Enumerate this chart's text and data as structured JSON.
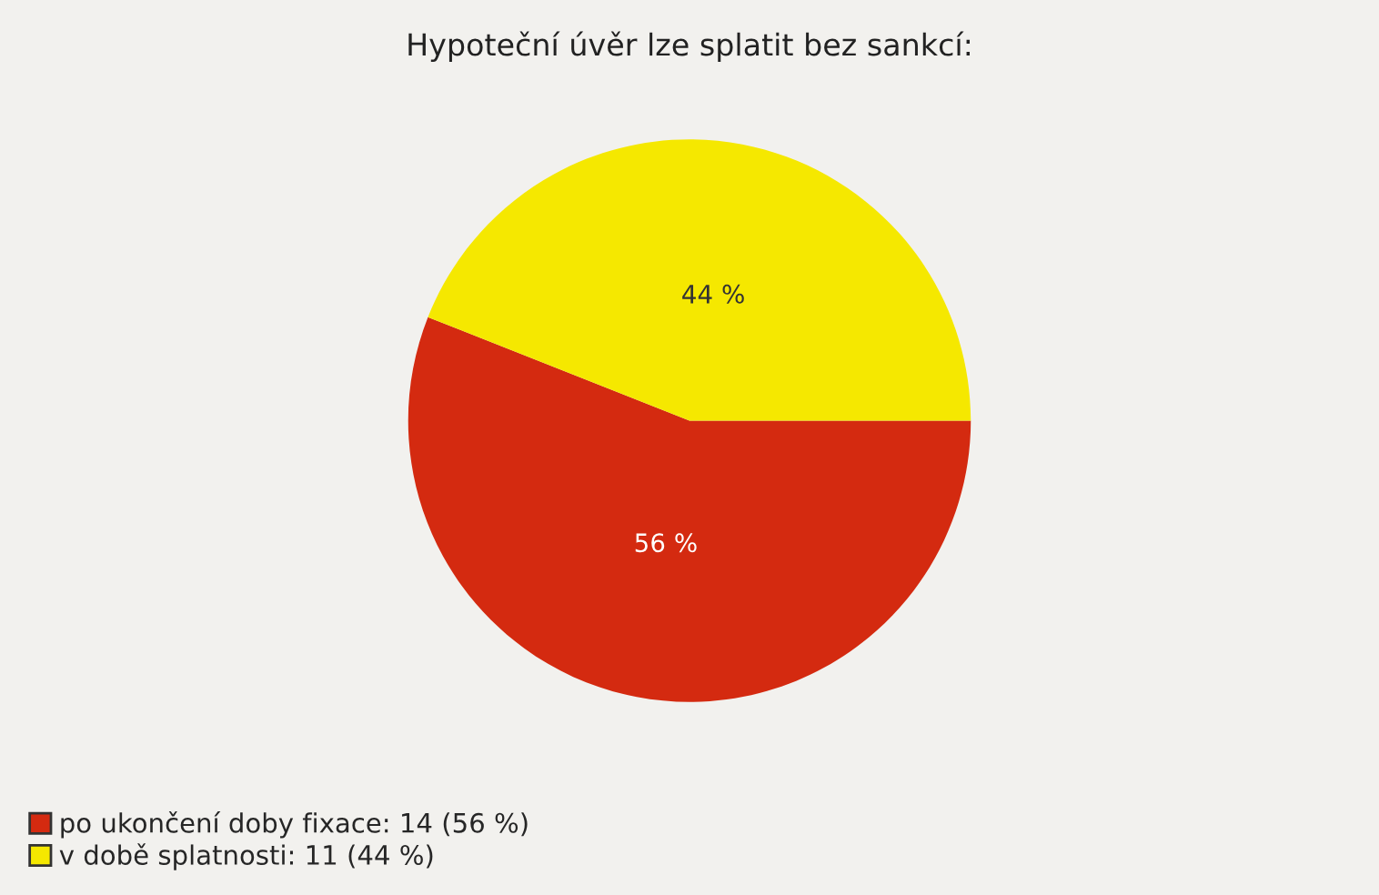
{
  "chart_data": {
    "type": "pie",
    "title": "Hypoteční úvěr lze splatit bez sankcí:",
    "categories": [
      "po ukončení doby fixace: 14 (56 %)",
      "v době splatnosti: 11 (44 %)"
    ],
    "values": [
      56,
      44
    ],
    "value_labels": [
      "56 %",
      "44 %"
    ],
    "colors": [
      "#d42a10",
      "#f5e800"
    ],
    "legend": "bottom left"
  }
}
